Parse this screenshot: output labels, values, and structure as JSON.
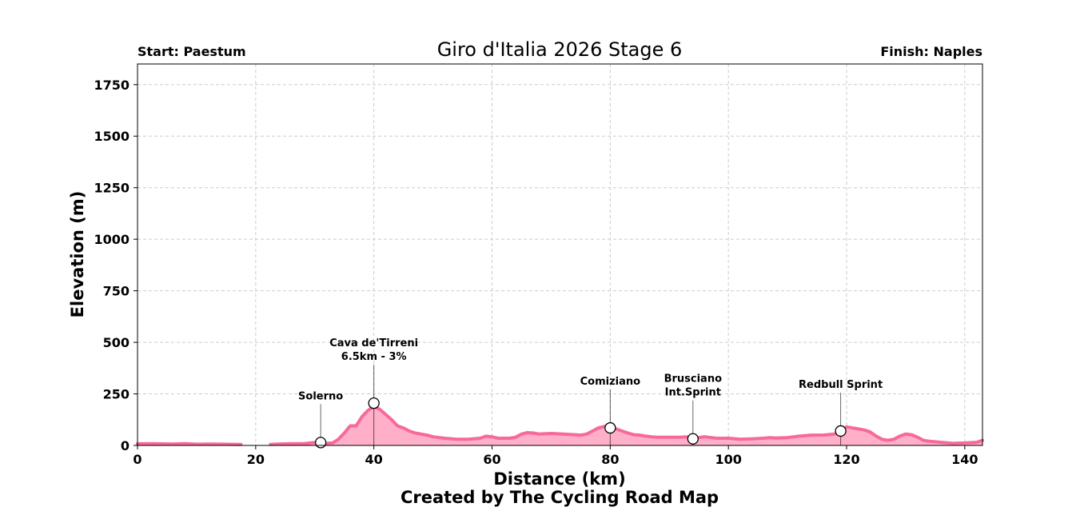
{
  "chart_data": {
    "type": "area",
    "title": "Giro d'Italia 2026 Stage 6",
    "start_label": "Start: Paestum",
    "finish_label": "Finish: Naples",
    "xlabel": "Distance (km)",
    "ylabel": "Elevation (m)",
    "footer": "Created by The Cycling Road Map",
    "xlim": [
      0,
      143
    ],
    "ylim": [
      0,
      1850
    ],
    "xticks": [
      0,
      20,
      40,
      60,
      80,
      100,
      120,
      140
    ],
    "yticks": [
      0,
      250,
      500,
      750,
      1000,
      1250,
      1500,
      1750
    ],
    "grid": true,
    "line_color": "#f7699a",
    "fill_color": "#ffb0c8",
    "segments": [
      {
        "x": [
          0,
          3,
          6,
          8,
          10,
          12,
          15,
          17.5
        ],
        "y": [
          8,
          8,
          7,
          9,
          6,
          7,
          6,
          5
        ]
      },
      {
        "x": [
          22.5,
          24,
          26,
          28,
          30,
          31,
          32,
          33,
          34,
          35,
          36,
          37,
          38,
          39,
          40,
          41,
          42,
          43,
          44,
          45,
          46,
          47,
          48,
          49,
          50,
          52,
          54,
          56,
          58,
          59,
          60,
          61,
          62,
          63,
          64,
          65,
          66,
          67,
          68,
          70,
          72,
          74,
          75,
          76,
          77,
          78,
          79,
          80,
          81,
          82,
          83,
          84,
          85,
          86,
          87,
          88,
          90,
          92,
          93,
          94,
          96,
          98,
          100,
          102,
          104,
          106,
          107,
          108,
          110,
          112,
          114,
          116,
          118,
          119,
          120,
          121,
          122,
          123,
          124,
          125,
          126,
          127,
          128,
          129,
          130,
          131,
          132,
          133,
          134,
          136,
          138,
          140,
          142,
          143
        ],
        "y": [
          5,
          7,
          8,
          8,
          14,
          14,
          10,
          12,
          30,
          60,
          95,
          95,
          140,
          170,
          190,
          175,
          150,
          125,
          95,
          85,
          70,
          60,
          55,
          50,
          42,
          35,
          30,
          30,
          35,
          45,
          42,
          35,
          35,
          35,
          40,
          55,
          62,
          60,
          55,
          58,
          55,
          52,
          50,
          55,
          70,
          85,
          92,
          98,
          80,
          70,
          60,
          52,
          50,
          45,
          42,
          40,
          40,
          40,
          42,
          35,
          42,
          35,
          35,
          30,
          32,
          35,
          38,
          36,
          38,
          45,
          50,
          50,
          55,
          72,
          90,
          85,
          80,
          75,
          65,
          45,
          30,
          25,
          30,
          45,
          55,
          52,
          40,
          25,
          20,
          15,
          10,
          12,
          15,
          25
        ]
      }
    ],
    "annotations": [
      {
        "lines": [
          "Solerno"
        ],
        "x": 31,
        "y": 14
      },
      {
        "lines": [
          "Cava de'Tirreni",
          "6.5km - 3%"
        ],
        "x": 40,
        "y": 205
      },
      {
        "lines": [
          "Comiziano"
        ],
        "x": 80,
        "y": 85
      },
      {
        "lines": [
          "Brusciano",
          "Int.Sprint"
        ],
        "x": 94,
        "y": 32
      },
      {
        "lines": [
          "Redbull Sprint"
        ],
        "x": 119,
        "y": 70
      }
    ]
  }
}
